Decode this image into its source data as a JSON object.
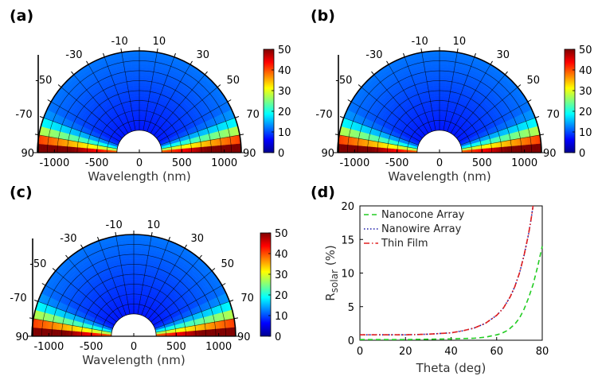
{
  "panels": [
    {
      "label": "(a)"
    },
    {
      "label": "(b)"
    },
    {
      "label": "(c)"
    },
    {
      "label": "(d)"
    }
  ],
  "chart_data": [
    {
      "type": "heatmap",
      "panel": "(a)",
      "projection": "polar-half",
      "xlabel": "Wavelength (nm)",
      "x_ticks": [
        "-1000",
        "-500",
        "0",
        "500",
        "1000"
      ],
      "angle_labels": [
        "90",
        "-70",
        "-50",
        "-30",
        "-10",
        "10",
        "30",
        "50",
        "70",
        "90"
      ],
      "colorbar": {
        "min": 0,
        "max": 50,
        "ticks": [
          "50",
          "40",
          "30",
          "20",
          "10",
          "0"
        ]
      }
    },
    {
      "type": "heatmap",
      "panel": "(b)",
      "projection": "polar-half",
      "xlabel": "Wavelength (nm)",
      "x_ticks": [
        "-1000",
        "-500",
        "0",
        "500",
        "1000"
      ],
      "angle_labels": [
        "90",
        "-70",
        "-50",
        "-30",
        "-10",
        "10",
        "30",
        "50",
        "70",
        "90"
      ],
      "colorbar": {
        "min": 0,
        "max": 50,
        "ticks": [
          "50",
          "40",
          "30",
          "20",
          "10",
          "0"
        ]
      }
    },
    {
      "type": "heatmap",
      "panel": "(c)",
      "projection": "polar-half",
      "xlabel": "Wavelength (nm)",
      "x_ticks": [
        "-1000",
        "-500",
        "0",
        "500",
        "1000"
      ],
      "angle_labels": [
        "90",
        "-70",
        "-50",
        "-30",
        "-10",
        "10",
        "30",
        "50",
        "70",
        "90"
      ],
      "colorbar": {
        "min": 0,
        "max": 50,
        "ticks": [
          "50",
          "40",
          "30",
          "20",
          "10",
          "0"
        ]
      }
    },
    {
      "type": "line",
      "panel": "(d)",
      "xlabel": "Theta (deg)",
      "ylabel_main": "R",
      "ylabel_sub": "solar",
      "ylabel_unit": " (%)",
      "xlim": [
        0,
        80
      ],
      "ylim": [
        0,
        20
      ],
      "x_ticks": [
        "0",
        "20",
        "40",
        "60",
        "80"
      ],
      "y_ticks": [
        "0",
        "5",
        "10",
        "15",
        "20"
      ],
      "legend_position": "top-left",
      "series": [
        {
          "name": "Nanocone Array",
          "color": "#22cc22",
          "dash": "dashed",
          "x": [
            0,
            10,
            20,
            30,
            40,
            50,
            55,
            60,
            62,
            65,
            68,
            70,
            72,
            74,
            76,
            78,
            80
          ],
          "y": [
            0.1,
            0.1,
            0.1,
            0.15,
            0.2,
            0.3,
            0.45,
            0.8,
            1.0,
            1.5,
            2.4,
            3.3,
            4.6,
            6.3,
            8.3,
            11.0,
            14.0
          ]
        },
        {
          "name": "Nanowire Array",
          "color": "#1a1aa8",
          "dash": "dotted",
          "x": [
            0,
            10,
            20,
            30,
            40,
            45,
            50,
            55,
            60,
            63,
            66,
            68,
            70,
            72,
            74,
            75,
            76
          ],
          "y": [
            0.8,
            0.8,
            0.8,
            0.9,
            1.1,
            1.4,
            1.8,
            2.5,
            3.7,
            4.8,
            6.5,
            8.0,
            10.0,
            12.6,
            15.8,
            17.8,
            20.0
          ]
        },
        {
          "name": "Thin Film",
          "color": "#e02020",
          "dash": "dashdot",
          "x": [
            0,
            10,
            20,
            30,
            40,
            45,
            50,
            55,
            60,
            63,
            66,
            68,
            70,
            72,
            74,
            75,
            76
          ],
          "y": [
            0.8,
            0.8,
            0.8,
            0.9,
            1.1,
            1.4,
            1.8,
            2.5,
            3.7,
            4.8,
            6.5,
            8.0,
            10.0,
            12.6,
            15.8,
            17.8,
            20.0
          ]
        }
      ]
    }
  ]
}
